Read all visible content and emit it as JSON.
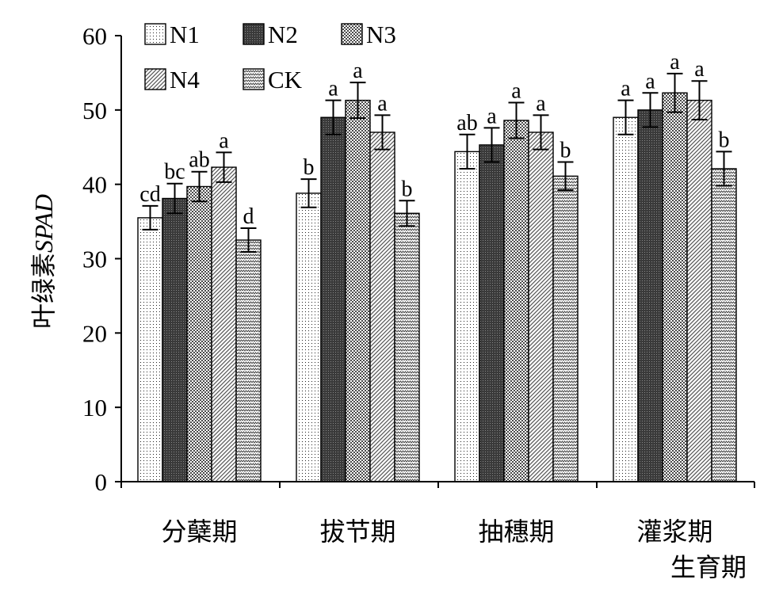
{
  "chart_data": {
    "type": "bar",
    "xlabel": "生育期",
    "ylabel_prefix": "叶绿素",
    "ylabel_italic": "SPAD",
    "ylim": [
      0,
      60
    ],
    "yticks": [
      "0",
      "10",
      "20",
      "30",
      "40",
      "50",
      "60"
    ],
    "categories": [
      "分蘖期",
      "拔节期",
      "抽穗期",
      "灌浆期"
    ],
    "legend_position": "top-left",
    "series": [
      {
        "name": "N1",
        "pattern": "dots",
        "values": [
          35.5,
          38.8,
          44.4,
          49.0
        ],
        "errors": [
          1.6,
          1.9,
          2.3,
          2.3
        ],
        "labels": [
          "cd",
          "b",
          "ab",
          "a"
        ]
      },
      {
        "name": "N2",
        "pattern": "dark",
        "values": [
          38.1,
          49.0,
          45.3,
          50.0
        ],
        "errors": [
          2.0,
          2.3,
          2.3,
          2.3
        ],
        "labels": [
          "bc",
          "a",
          "a",
          "a"
        ]
      },
      {
        "name": "N3",
        "pattern": "checker",
        "values": [
          39.7,
          51.3,
          48.6,
          52.3
        ],
        "errors": [
          2.0,
          2.4,
          2.4,
          2.6
        ],
        "labels": [
          "ab",
          "a",
          "a",
          "a"
        ]
      },
      {
        "name": "N4",
        "pattern": "diagonal",
        "values": [
          42.3,
          47.0,
          47.0,
          51.3
        ],
        "errors": [
          2.0,
          2.3,
          2.3,
          2.6
        ],
        "labels": [
          "a",
          "a",
          "a",
          "a"
        ]
      },
      {
        "name": "CK",
        "pattern": "wave",
        "values": [
          32.5,
          36.1,
          41.1,
          42.1
        ],
        "errors": [
          1.6,
          1.7,
          1.9,
          2.3
        ],
        "labels": [
          "d",
          "b",
          "b",
          "b"
        ]
      }
    ]
  }
}
